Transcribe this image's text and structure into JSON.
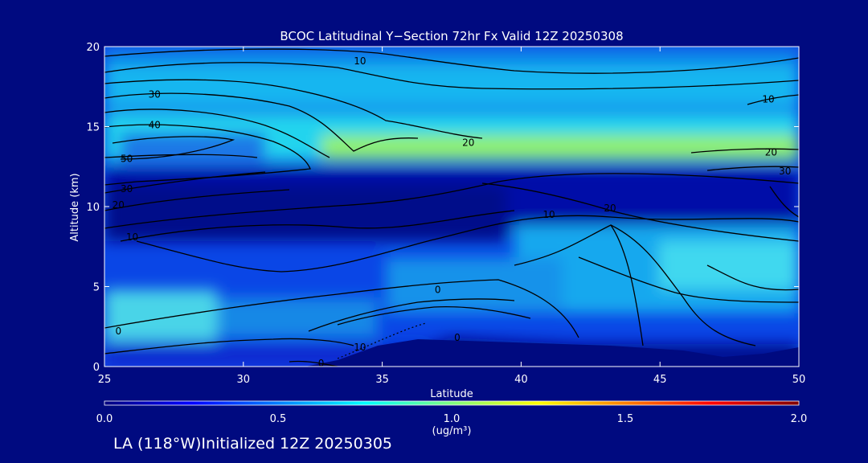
{
  "chart_data": {
    "type": "heatmap",
    "title": "BCOC Latitudinal Y−Section 72hr  Fx Valid 12Z 20250308",
    "xlabel": "Latitude",
    "ylabel": "Altitude (km)",
    "xlim": [
      25,
      50
    ],
    "ylim": [
      0,
      20
    ],
    "x_ticks": [
      "25",
      "30",
      "35",
      "40",
      "45",
      "50"
    ],
    "y_ticks": [
      "0",
      "5",
      "10",
      "15",
      "20"
    ],
    "colorbar": {
      "min": 0.0,
      "max": 2.0,
      "ticks": [
        "0.0",
        "0.5",
        "1.0",
        "1.5",
        "2.0"
      ],
      "units": "(ug/m³)"
    },
    "bands": [
      {
        "alt_center": 3.2,
        "lat_extent": [
          25,
          29
        ],
        "value": 0.9
      },
      {
        "alt_center": 13.6,
        "lat_extent": [
          34,
          50
        ],
        "value": 0.85
      },
      {
        "alt_center": 14.0,
        "lat_extent": [
          25,
          34
        ],
        "value": 0.55
      },
      {
        "alt_center": 7.5,
        "lat_extent": [
          40,
          50
        ],
        "value": 0.6
      },
      {
        "alt_center": 11.2,
        "lat_extent": [
          25,
          50
        ],
        "value": 0.15
      }
    ],
    "contour_labels": [
      {
        "text": "10",
        "lat": 34.2,
        "alt": 19.1
      },
      {
        "text": "30",
        "lat": 26.8,
        "alt": 17.0
      },
      {
        "text": "40",
        "lat": 26.8,
        "alt": 15.1
      },
      {
        "text": "50",
        "lat": 25.8,
        "alt": 13.0
      },
      {
        "text": "30",
        "lat": 25.8,
        "alt": 11.1
      },
      {
        "text": "20",
        "lat": 25.5,
        "alt": 10.1
      },
      {
        "text": "10",
        "lat": 26.0,
        "alt": 8.1
      },
      {
        "text": "0",
        "lat": 25.5,
        "alt": 2.2
      },
      {
        "text": "20",
        "lat": 38.1,
        "alt": 14.0
      },
      {
        "text": "10",
        "lat": 41.0,
        "alt": 9.5
      },
      {
        "text": "20",
        "lat": 43.2,
        "alt": 9.9
      },
      {
        "text": "0",
        "lat": 37.0,
        "alt": 4.8
      },
      {
        "text": "0",
        "lat": 37.7,
        "alt": 1.8
      },
      {
        "text": "10",
        "lat": 34.2,
        "alt": 1.2
      },
      {
        "text": "0",
        "lat": 32.8,
        "alt": 0.2
      },
      {
        "text": "10",
        "lat": 48.9,
        "alt": 16.7
      },
      {
        "text": "20",
        "lat": 49.0,
        "alt": 13.4
      },
      {
        "text": "30",
        "lat": 49.5,
        "alt": 12.2
      }
    ]
  },
  "footer": "LA (118°W)Initialized 12Z 20250305",
  "colors": {
    "background": "#000a80",
    "colormap": [
      "#00007f",
      "#0000ff",
      "#0080ff",
      "#00ffff",
      "#80ff80",
      "#ffff00",
      "#ff8000",
      "#ff0000",
      "#800000"
    ]
  }
}
